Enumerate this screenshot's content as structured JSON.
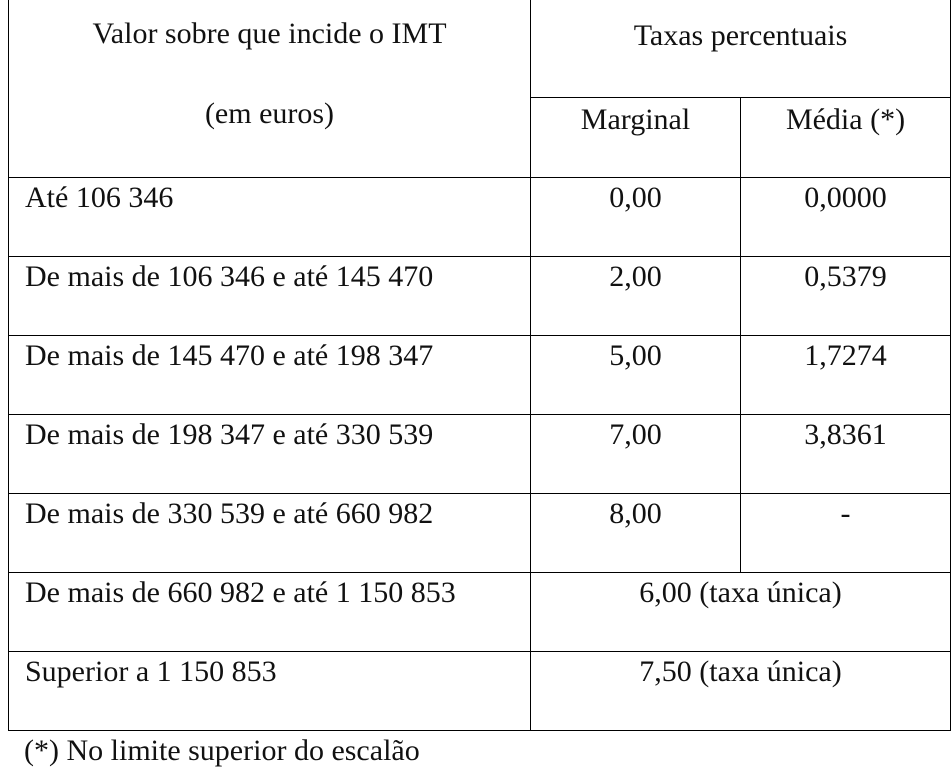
{
  "table": {
    "header": {
      "value_col": [
        "Valor sobre que incide o IMT",
        "(em euros)"
      ],
      "rates": "Taxas percentuais",
      "marginal": "Marginal",
      "media": "Média (*)"
    },
    "rows": [
      [
        "Até 106 346",
        "0,00",
        "0,0000"
      ],
      [
        "De mais de 106 346 e até 145 470",
        "2,00",
        "0,5379"
      ],
      [
        "De mais de 145 470 e até 198 347",
        "5,00",
        "1,7274"
      ],
      [
        "De mais de 198 347 e até 330 539",
        "7,00",
        "3,8361"
      ],
      [
        "De mais de 330 539 e até 660 982",
        "8,00",
        "-"
      ],
      [
        "De mais de 660 982 e até 1 150 853",
        "6,00 (taxa única)"
      ],
      [
        "Superior a 1 150 853",
        "7,50 (taxa única)"
      ]
    ]
  },
  "footnote": "(*) No limite superior do escalão"
}
